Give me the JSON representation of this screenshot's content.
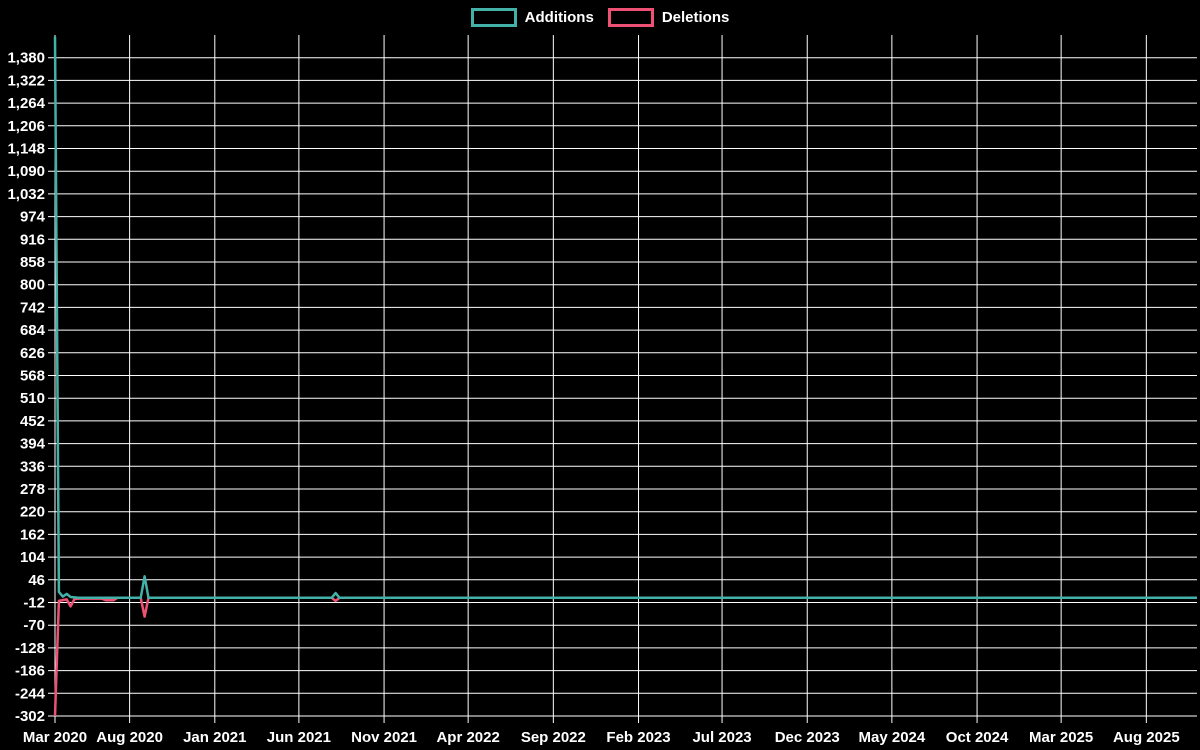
{
  "chart_data": {
    "type": "line",
    "title": "",
    "legend_position": "top center",
    "background_color": "#000000",
    "grid": true,
    "grid_color": "#ffffff",
    "text_color": "#ffffff",
    "x_axis": {
      "start_date": "2020-03-20",
      "end_date": "2025-10-31",
      "ticks": [
        {
          "label": "Mar 2020",
          "date": "2020-03-20"
        },
        {
          "label": "Aug 2020",
          "date": "2020-08-01"
        },
        {
          "label": "Jan 2021",
          "date": "2021-01-01"
        },
        {
          "label": "Jun 2021",
          "date": "2021-06-01"
        },
        {
          "label": "Nov 2021",
          "date": "2021-11-01"
        },
        {
          "label": "Apr 2022",
          "date": "2022-04-01"
        },
        {
          "label": "Sep 2022",
          "date": "2022-09-01"
        },
        {
          "label": "Feb 2023",
          "date": "2023-02-01"
        },
        {
          "label": "Jul 2023",
          "date": "2023-07-01"
        },
        {
          "label": "Dec 2023",
          "date": "2023-12-01"
        },
        {
          "label": "May 2024",
          "date": "2024-05-01"
        },
        {
          "label": "Oct 2024",
          "date": "2024-10-01"
        },
        {
          "label": "Mar 2025",
          "date": "2025-03-01"
        },
        {
          "label": "Aug 2025",
          "date": "2025-08-01"
        }
      ]
    },
    "y_axis": {
      "min": -302,
      "max": 1438,
      "tick_step": 58,
      "ticks": [
        1380,
        1322,
        1264,
        1206,
        1148,
        1090,
        1032,
        974,
        916,
        858,
        800,
        742,
        684,
        626,
        568,
        510,
        452,
        394,
        336,
        278,
        220,
        162,
        104,
        46,
        -12,
        -70,
        -128,
        -186,
        -244,
        -302
      ]
    },
    "series": [
      {
        "name": "Additions",
        "color": "#44b1a8",
        "points": [
          [
            "2020-03-20",
            1434
          ],
          [
            "2020-03-27",
            15
          ],
          [
            "2020-04-03",
            3
          ],
          [
            "2020-04-10",
            10
          ],
          [
            "2020-04-17",
            2
          ],
          [
            "2020-05-01",
            0
          ],
          [
            "2020-08-21",
            0
          ],
          [
            "2020-08-28",
            55
          ],
          [
            "2020-09-04",
            0
          ],
          [
            "2021-07-30",
            0
          ],
          [
            "2021-08-06",
            12
          ],
          [
            "2021-08-13",
            0
          ],
          [
            "2025-10-31",
            0
          ]
        ]
      },
      {
        "name": "Deletions",
        "color": "#ef5174",
        "points": [
          [
            "2020-03-20",
            -302
          ],
          [
            "2020-03-27",
            -8
          ],
          [
            "2020-04-10",
            -4
          ],
          [
            "2020-04-17",
            -22
          ],
          [
            "2020-04-24",
            -3
          ],
          [
            "2020-05-01",
            -2
          ],
          [
            "2020-06-12",
            -2
          ],
          [
            "2020-06-19",
            -6
          ],
          [
            "2020-07-03",
            -6
          ],
          [
            "2020-07-10",
            0
          ],
          [
            "2020-08-21",
            0
          ],
          [
            "2020-08-28",
            -48
          ],
          [
            "2020-09-04",
            0
          ],
          [
            "2021-07-30",
            0
          ],
          [
            "2021-08-06",
            -8
          ],
          [
            "2021-08-13",
            0
          ],
          [
            "2025-10-31",
            0
          ]
        ]
      }
    ]
  }
}
